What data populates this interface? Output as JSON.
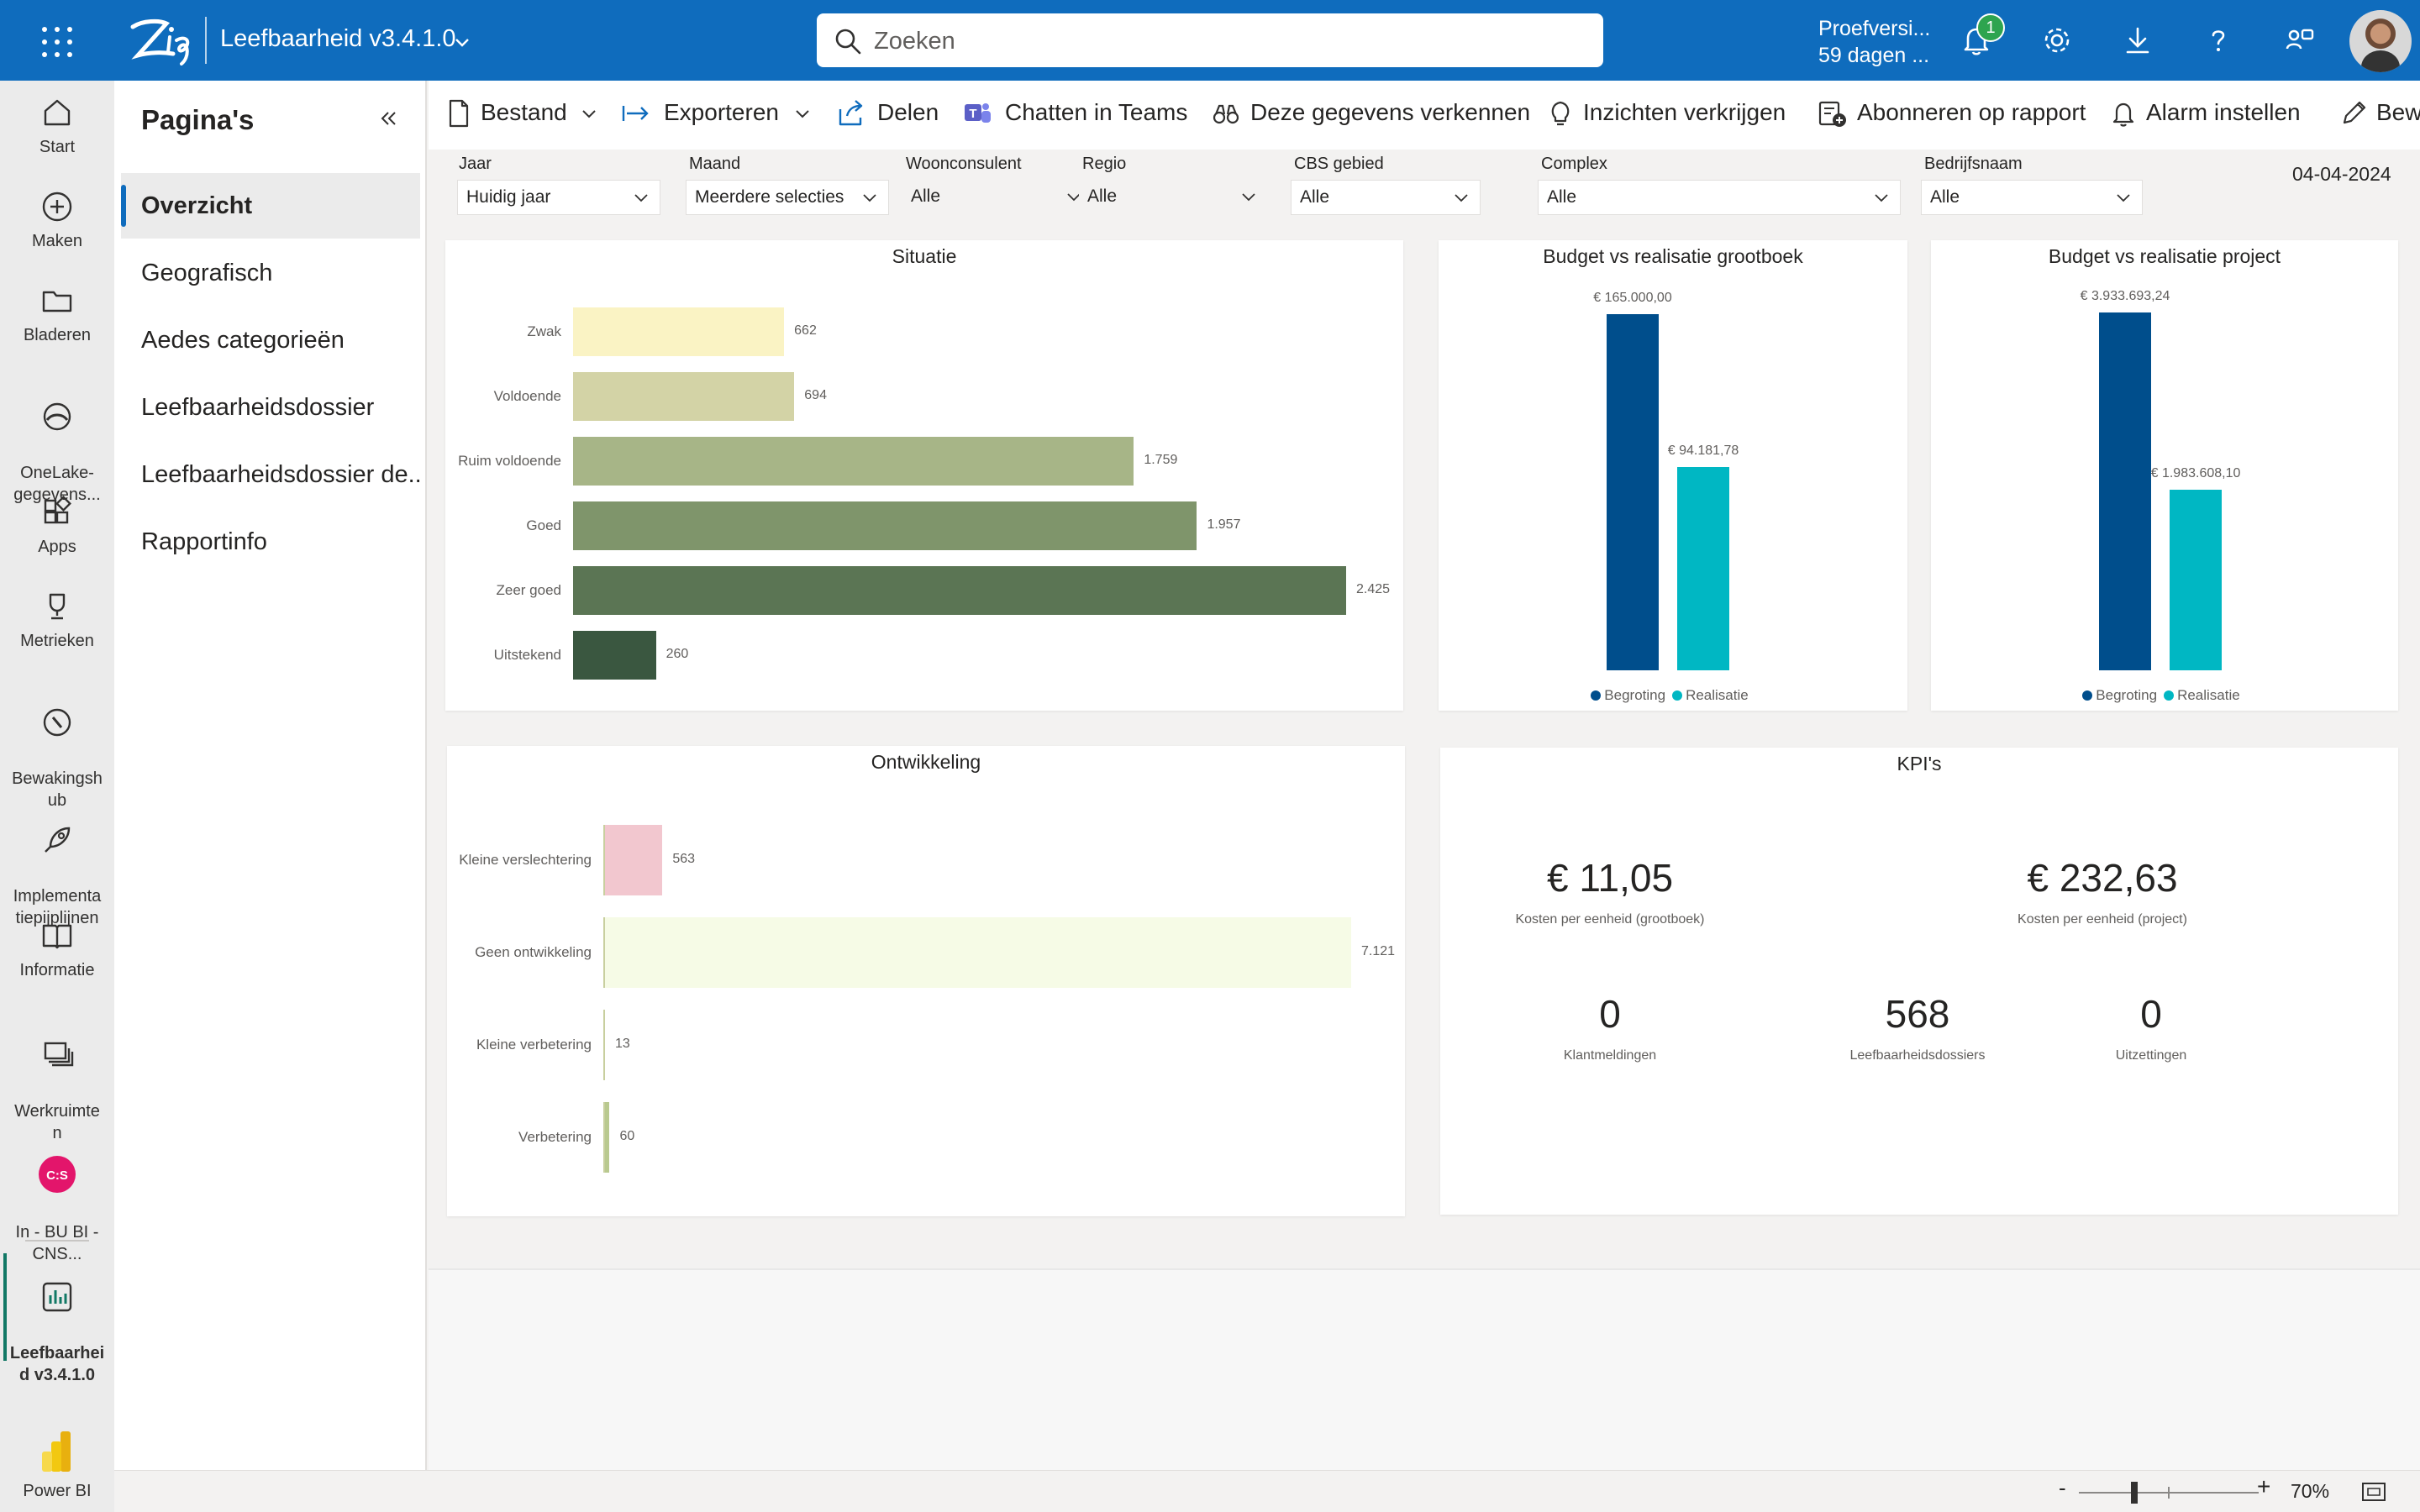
{
  "topbar": {
    "app_title": "Leefbaarheid v3.4.1.0",
    "search_placeholder": "Zoeken",
    "trial_line1": "Proefversi...",
    "trial_line2": "59 dagen ...",
    "notification_count": "1",
    "brand_color": "#0f6cbd"
  },
  "rail": {
    "items": [
      {
        "label": "Start",
        "icon": "home-icon"
      },
      {
        "label": "Maken",
        "icon": "plus-circle-icon"
      },
      {
        "label": "Bladeren",
        "icon": "folder-icon"
      },
      {
        "label": "OneLake-\ngegevens...",
        "icon": "onelake-icon"
      },
      {
        "label": "Apps",
        "icon": "apps-icon"
      },
      {
        "label": "Metrieken",
        "icon": "trophy-icon"
      },
      {
        "label": "Bewakingsh\nub",
        "icon": "compass-icon"
      },
      {
        "label": "Implementa\ntiepijplijnen",
        "icon": "rocket-icon"
      },
      {
        "label": "Informatie",
        "icon": "book-icon"
      },
      {
        "label": "Werkruimte\nn",
        "icon": "workspaces-icon"
      },
      {
        "label": "In - BU BI -\nCNS...",
        "icon": "cns-workspace-icon"
      },
      {
        "label": "Leefbaarhei\nd v3.4.1.0",
        "icon": "report-icon"
      },
      {
        "label": "Power BI",
        "icon": "powerbi-icon"
      }
    ]
  },
  "pages": {
    "header": "Pagina's",
    "items": [
      "Overzicht",
      "Geografisch",
      "Aedes categorieën",
      "Leefbaarheidsdossier",
      "Leefbaarheidsdossier de...",
      "Rapportinfo"
    ],
    "active_index": 0
  },
  "commands": [
    "Bestand",
    "Exporteren",
    "Delen",
    "Chatten in Teams",
    "Deze gegevens verkennen",
    "Inzichten verkrijgen",
    "Abonneren op rapport",
    "Alarm instellen",
    "Bew"
  ],
  "slicers": [
    {
      "label": "Jaar",
      "value": "Huidig jaar"
    },
    {
      "label": "Maand",
      "value": "Meerdere selecties"
    },
    {
      "label": "Woonconsulent",
      "value": "Alle"
    },
    {
      "label": "Regio",
      "value": "Alle"
    },
    {
      "label": "CBS gebied",
      "value": "Alle"
    },
    {
      "label": "Complex",
      "value": "Alle"
    },
    {
      "label": "Bedrijfsnaam",
      "value": "Alle"
    }
  ],
  "report_date": "04-04-2024",
  "chart_data": [
    {
      "type": "bar",
      "orientation": "horizontal",
      "title": "Situatie",
      "categories": [
        "Zwak",
        "Voldoende",
        "Ruim voldoende",
        "Goed",
        "Zeer goed",
        "Uitstekend"
      ],
      "values": [
        662,
        694,
        1759,
        1957,
        2425,
        260
      ],
      "value_labels": [
        "662",
        "694",
        "1.759",
        "1.957",
        "2.425",
        "260"
      ],
      "colors": [
        "#faf3c4",
        "#d3d3a6",
        "#a7b587",
        "#7f956b",
        "#5b7554",
        "#3a5740"
      ]
    },
    {
      "type": "bar",
      "title": "Budget vs realisatie grootboek",
      "categories": [
        "Begroting",
        "Realisatie"
      ],
      "values": [
        165000.0,
        94181.78
      ],
      "value_labels": [
        "€ 165.000,00",
        "€ 94.181,78"
      ],
      "colors": [
        "#004e8c",
        "#00b7c3"
      ],
      "legend": [
        "Begroting",
        "Realisatie"
      ],
      "legend_position": "bottom-center"
    },
    {
      "type": "bar",
      "title": "Budget vs realisatie project",
      "categories": [
        "Begroting",
        "Realisatie"
      ],
      "values": [
        3933693.24,
        1983608.1
      ],
      "value_labels": [
        "€ 3.933.693,24",
        "€ 1.983.608,10"
      ],
      "colors": [
        "#004e8c",
        "#00b7c3"
      ],
      "legend": [
        "Begroting",
        "Realisatie"
      ],
      "legend_position": "bottom-center"
    },
    {
      "type": "bar",
      "orientation": "horizontal",
      "title": "Ontwikkeling",
      "categories": [
        "Kleine verslechtering",
        "Geen ontwikkeling",
        "Kleine verbetering",
        "Verbetering"
      ],
      "values": [
        563,
        7121,
        13,
        60
      ],
      "value_labels": [
        "563",
        "7.121",
        "13",
        "60"
      ],
      "colors": [
        "#f2c7cf",
        "#f6fbe6",
        "#e3e8cf",
        "#b9c98f"
      ]
    }
  ],
  "kpis": {
    "title": "KPI's",
    "items": [
      {
        "value": "€ 11,05",
        "label": "Kosten per eenheid (grootboek)"
      },
      {
        "value": "€ 232,63",
        "label": "Kosten per eenheid (project)"
      },
      {
        "value": "0",
        "label": "Klantmeldingen"
      },
      {
        "value": "568",
        "label": "Leefbaarheidsdossiers"
      },
      {
        "value": "0",
        "label": "Uitzettingen"
      }
    ]
  },
  "statusbar": {
    "zoom_minus": "-",
    "zoom_plus": "+",
    "zoom": "70%"
  }
}
